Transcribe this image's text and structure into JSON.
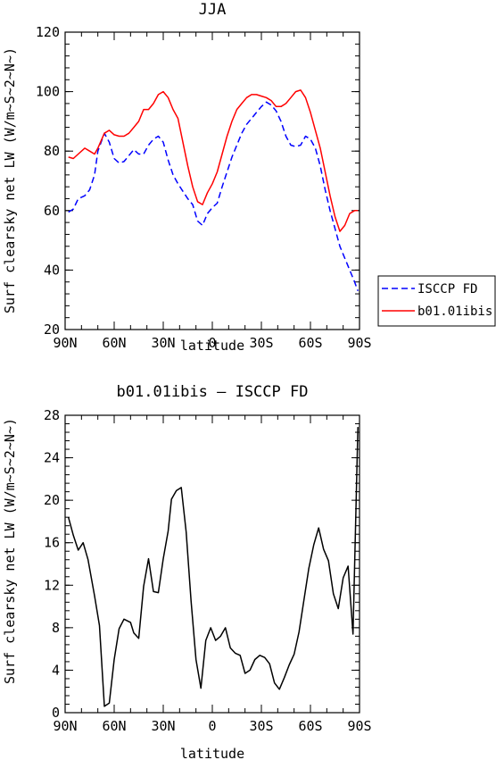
{
  "chart_data": [
    {
      "type": "line",
      "title": "JJA",
      "xlabel": "latitude",
      "ylabel": "Surf clearsky net LW (W/m~S~2~N~)",
      "xlim": [
        90,
        -90
      ],
      "ylim": [
        20,
        120
      ],
      "x_ticks": [
        90,
        60,
        30,
        0,
        -30,
        -60,
        -90
      ],
      "x_tick_labels": [
        "90N",
        "60N",
        "30N",
        "0",
        "30S",
        "60S",
        "90S"
      ],
      "y_ticks": [
        20,
        40,
        60,
        80,
        100,
        120
      ],
      "y_tick_labels": [
        "20",
        "40",
        "60",
        "80",
        "100",
        "120"
      ],
      "legend_position": "right",
      "series": [
        {
          "name": "ISCCP FD",
          "color": "#0000ff",
          "dash": "dashed",
          "x": [
            88,
            85,
            82,
            78,
            75,
            72,
            70,
            66,
            63,
            60,
            57,
            54,
            51,
            48,
            45,
            42,
            39,
            36,
            33,
            30,
            27,
            24,
            21,
            18,
            15,
            12,
            9,
            6,
            3,
            0,
            -3,
            -6,
            -9,
            -12,
            -15,
            -18,
            -21,
            -24,
            -27,
            -30,
            -33,
            -36,
            -39,
            -42,
            -45,
            -48,
            -51,
            -54,
            -57,
            -60,
            -63,
            -66,
            -69,
            -72,
            -75,
            -78,
            -81,
            -84,
            -87,
            -89
          ],
          "y": [
            59.5,
            60.5,
            64,
            65,
            67,
            72,
            80,
            86,
            83,
            77.5,
            76,
            76.5,
            78.5,
            80.5,
            79,
            79,
            82,
            84,
            85,
            83,
            77,
            72,
            69,
            66.5,
            64,
            62,
            56.5,
            55,
            59,
            61,
            62.5,
            68,
            73,
            78,
            82,
            86,
            89,
            91,
            93,
            95,
            96.5,
            95.5,
            93.5,
            90,
            85,
            82,
            81.5,
            82,
            85,
            84,
            81,
            75,
            67,
            60,
            54,
            48,
            44,
            40,
            36,
            33
          ]
        },
        {
          "name": "b01.01ibis",
          "color": "#ff0000",
          "dash": "solid",
          "x": [
            88,
            85,
            82,
            78,
            75,
            72,
            70,
            66,
            63,
            60,
            57,
            54,
            51,
            48,
            45,
            42,
            39,
            36,
            33,
            30,
            27,
            24,
            21,
            18,
            15,
            12,
            9,
            6,
            3,
            0,
            -3,
            -6,
            -9,
            -12,
            -15,
            -18,
            -21,
            -24,
            -27,
            -30,
            -33,
            -36,
            -39,
            -42,
            -45,
            -48,
            -51,
            -54,
            -57,
            -60,
            -63,
            -66,
            -69,
            -72,
            -75,
            -78,
            -81,
            -84,
            -87,
            -89
          ],
          "y": [
            78,
            77.5,
            79,
            81,
            80,
            79,
            81,
            86,
            87,
            85.5,
            85,
            85,
            86,
            88,
            90,
            94,
            94,
            96,
            99,
            100,
            98,
            94,
            91,
            83,
            75,
            68,
            63,
            62,
            66,
            69,
            73,
            79,
            85,
            90,
            94,
            96,
            98,
            99,
            99,
            98.5,
            98,
            97,
            95,
            95,
            96,
            98,
            100,
            100.5,
            98,
            93,
            87,
            81,
            73,
            65,
            58,
            53,
            55,
            59,
            60,
            60
          ]
        }
      ]
    },
    {
      "type": "line",
      "title": "b01.01ibis – ISCCP FD",
      "xlabel": "latitude",
      "ylabel": "Surf clearsky net LW (W/m~S~2~N~)",
      "xlim": [
        90,
        -90
      ],
      "ylim": [
        0,
        28
      ],
      "x_ticks": [
        90,
        60,
        30,
        0,
        -30,
        -60,
        -90
      ],
      "x_tick_labels": [
        "90N",
        "60N",
        "30N",
        "0",
        "30S",
        "60S",
        "90S"
      ],
      "y_ticks": [
        0,
        4,
        8,
        12,
        16,
        20,
        24,
        28
      ],
      "y_tick_labels": [
        "0",
        "4",
        "8",
        "12",
        "16",
        "20",
        "24",
        "28"
      ],
      "series": [
        {
          "color": "#000000",
          "dash": "solid",
          "x": [
            88,
            85,
            82,
            79,
            76,
            72,
            69,
            66,
            63,
            60,
            57,
            54,
            50,
            48,
            45,
            42,
            39,
            36,
            33,
            30,
            27,
            25,
            22,
            19,
            16,
            13,
            10,
            7,
            4,
            1,
            -2,
            -5,
            -8,
            -11,
            -14,
            -17,
            -20,
            -23,
            -26,
            -29,
            -32,
            -35,
            -38,
            -41,
            -44,
            -47,
            -50,
            -53,
            -56,
            -59,
            -62,
            -65,
            -68,
            -71,
            -74,
            -77,
            -80,
            -83,
            -86,
            -89
          ],
          "y": [
            18.4,
            16.7,
            15.3,
            16,
            14.4,
            11,
            8.2,
            0.6,
            0.9,
            5,
            7.9,
            8.8,
            8.5,
            7.5,
            7,
            11.9,
            14.5,
            11.4,
            11.3,
            14.5,
            17.1,
            20.1,
            20.9,
            21.2,
            17,
            10.5,
            5,
            2.3,
            6.8,
            8,
            6.8,
            7.2,
            8,
            6.1,
            5.6,
            5.4,
            3.7,
            4,
            5,
            5.4,
            5.2,
            4.6,
            2.8,
            2.2,
            3.3,
            4.5,
            5.5,
            7.6,
            10.6,
            13.6,
            15.8,
            17.4,
            15.4,
            14.3,
            11.2,
            9.8,
            12.7,
            13.8,
            7.4,
            26.9
          ]
        }
      ]
    }
  ]
}
